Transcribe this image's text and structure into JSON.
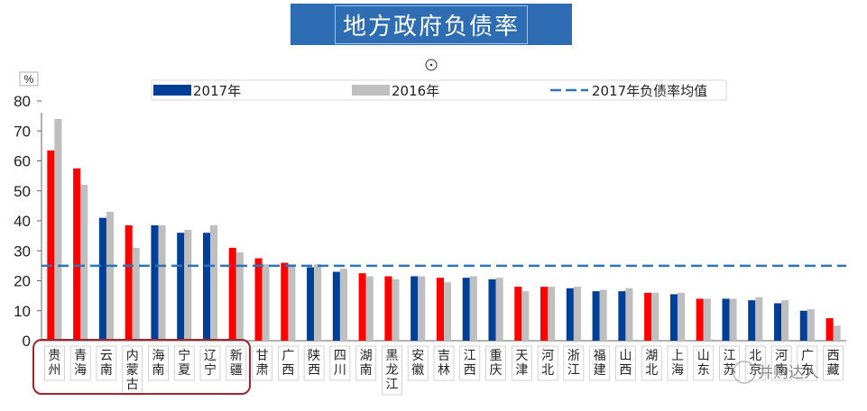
{
  "title": "地方政府负债率",
  "unit_label": "%",
  "watermark": "并购达人",
  "colors": {
    "title_bg": "#2e6db4",
    "bar_2017": "#003f98",
    "bar_2017_highlight": "#ff0000",
    "bar_2016": "#bfbfbf",
    "avg_line": "#2e75b6",
    "highlight_box": "#a0252c"
  },
  "legend": [
    {
      "label": "2017年",
      "type": "bar",
      "color": "#003f98"
    },
    {
      "label": "2016年",
      "type": "bar",
      "color": "#bfbfbf"
    },
    {
      "label": "2017年负债率均值",
      "type": "dashed-line",
      "color": "#2e75b6"
    }
  ],
  "chart_data": {
    "type": "bar",
    "title": "地方政府负债率",
    "ylabel": "%",
    "ylim": [
      0,
      80
    ],
    "yticks": [
      0,
      10,
      20,
      30,
      40,
      50,
      60,
      70,
      80
    ],
    "categories": [
      "贵州",
      "青海",
      "云南",
      "内蒙古",
      "海南",
      "宁夏",
      "辽宁",
      "新疆",
      "甘肃",
      "广西",
      "陕西",
      "四川",
      "湖南",
      "黑龙江",
      "安徽",
      "吉林",
      "江西",
      "重庆",
      "天津",
      "河北",
      "浙江",
      "福建",
      "山西",
      "湖北",
      "上海",
      "山东",
      "江苏",
      "北京",
      "河南",
      "广东",
      "西藏"
    ],
    "series": [
      {
        "name": "2017年",
        "values": [
          63.5,
          57.5,
          41.0,
          38.5,
          38.5,
          36.0,
          36.0,
          31.0,
          27.5,
          26.0,
          24.5,
          23.0,
          22.5,
          21.5,
          21.5,
          21.0,
          21.0,
          20.5,
          18.0,
          18.0,
          17.5,
          16.5,
          16.5,
          16.0,
          15.5,
          14.0,
          14.0,
          13.5,
          12.5,
          10.0,
          7.5
        ]
      },
      {
        "name": "2016年",
        "values": [
          74.0,
          52.0,
          43.0,
          31.0,
          38.5,
          37.0,
          38.5,
          29.5,
          25.5,
          25.5,
          25.5,
          24.0,
          21.5,
          20.5,
          21.5,
          19.5,
          21.5,
          21.0,
          16.5,
          18.0,
          18.0,
          17.0,
          17.5,
          16.0,
          16.0,
          14.0,
          14.0,
          14.5,
          13.5,
          10.5,
          5.0
        ]
      }
    ],
    "highlight_2017": [
      true,
      true,
      false,
      true,
      false,
      false,
      false,
      true,
      true,
      true,
      false,
      false,
      true,
      true,
      false,
      true,
      false,
      false,
      true,
      true,
      false,
      false,
      false,
      true,
      false,
      true,
      false,
      false,
      false,
      false,
      true
    ],
    "average_2017": 25,
    "highlight_group": [
      "贵州",
      "青海",
      "云南",
      "内蒙古",
      "海南",
      "宁夏",
      "辽宁",
      "新疆"
    ],
    "grid": false,
    "legend_position": "top"
  }
}
